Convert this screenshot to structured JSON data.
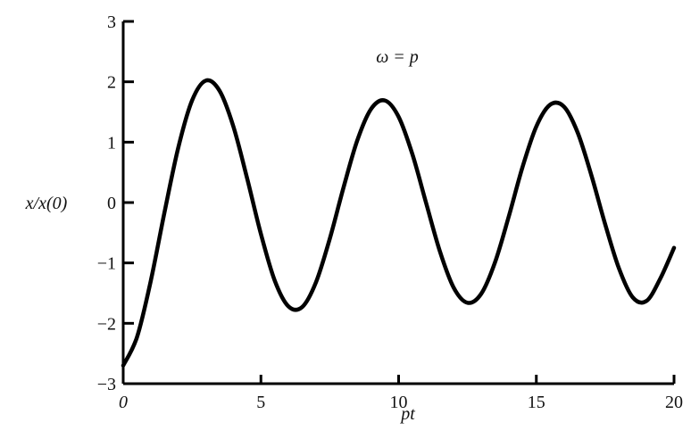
{
  "chart_data": {
    "type": "line",
    "title": "",
    "annotation": "ω = p",
    "xlabel": "pt",
    "ylabel": "x/x(0)",
    "xlim": [
      0,
      20
    ],
    "ylim": [
      -3,
      3
    ],
    "xticks": [
      "0",
      "5",
      "10",
      "15",
      "20"
    ],
    "yticks": [
      "3",
      "2",
      "1",
      "0",
      "−1",
      "−2",
      "−3"
    ],
    "grid": false,
    "line_color": "#000000",
    "series": [
      {
        "x": [
          0,
          0.5,
          1,
          1.5,
          2,
          2.5,
          3,
          3.5,
          4,
          4.5,
          5,
          5.5,
          6,
          6.5,
          7,
          7.5,
          8,
          8.5,
          9,
          9.5,
          10,
          10.5,
          11,
          11.5,
          12,
          12.5,
          13,
          13.5,
          14,
          14.5,
          15,
          15.5,
          16,
          16.5,
          17,
          17.5,
          18,
          18.5,
          19,
          19.5,
          20
        ],
        "y": [
          -2.7,
          -2.23,
          -1.3,
          -0.16,
          0.91,
          1.69,
          2.02,
          1.85,
          1.26,
          0.4,
          -0.52,
          -1.29,
          -1.72,
          -1.73,
          -1.32,
          -0.6,
          0.25,
          1.03,
          1.55,
          1.69,
          1.42,
          0.8,
          -0.01,
          -0.81,
          -1.41,
          -1.66,
          -1.51,
          -0.99,
          -0.23,
          0.59,
          1.26,
          1.62,
          1.59,
          1.16,
          0.45,
          -0.36,
          -1.09,
          -1.57,
          -1.63,
          -1.26,
          -0.75
        ]
      }
    ]
  }
}
